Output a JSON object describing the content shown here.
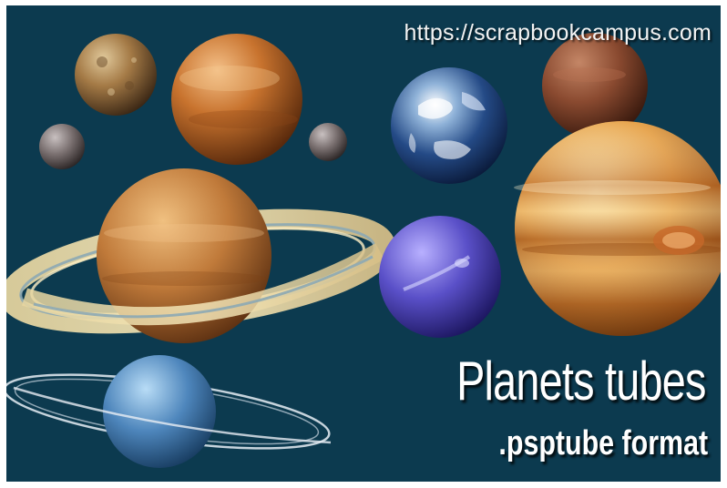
{
  "banner": {
    "url": "https://scrapbookcampus.com",
    "title": "Planets tubes",
    "subtitle": ".psptube format"
  },
  "colors": {
    "background": "#0c3a4f",
    "text": "#ffffff"
  }
}
